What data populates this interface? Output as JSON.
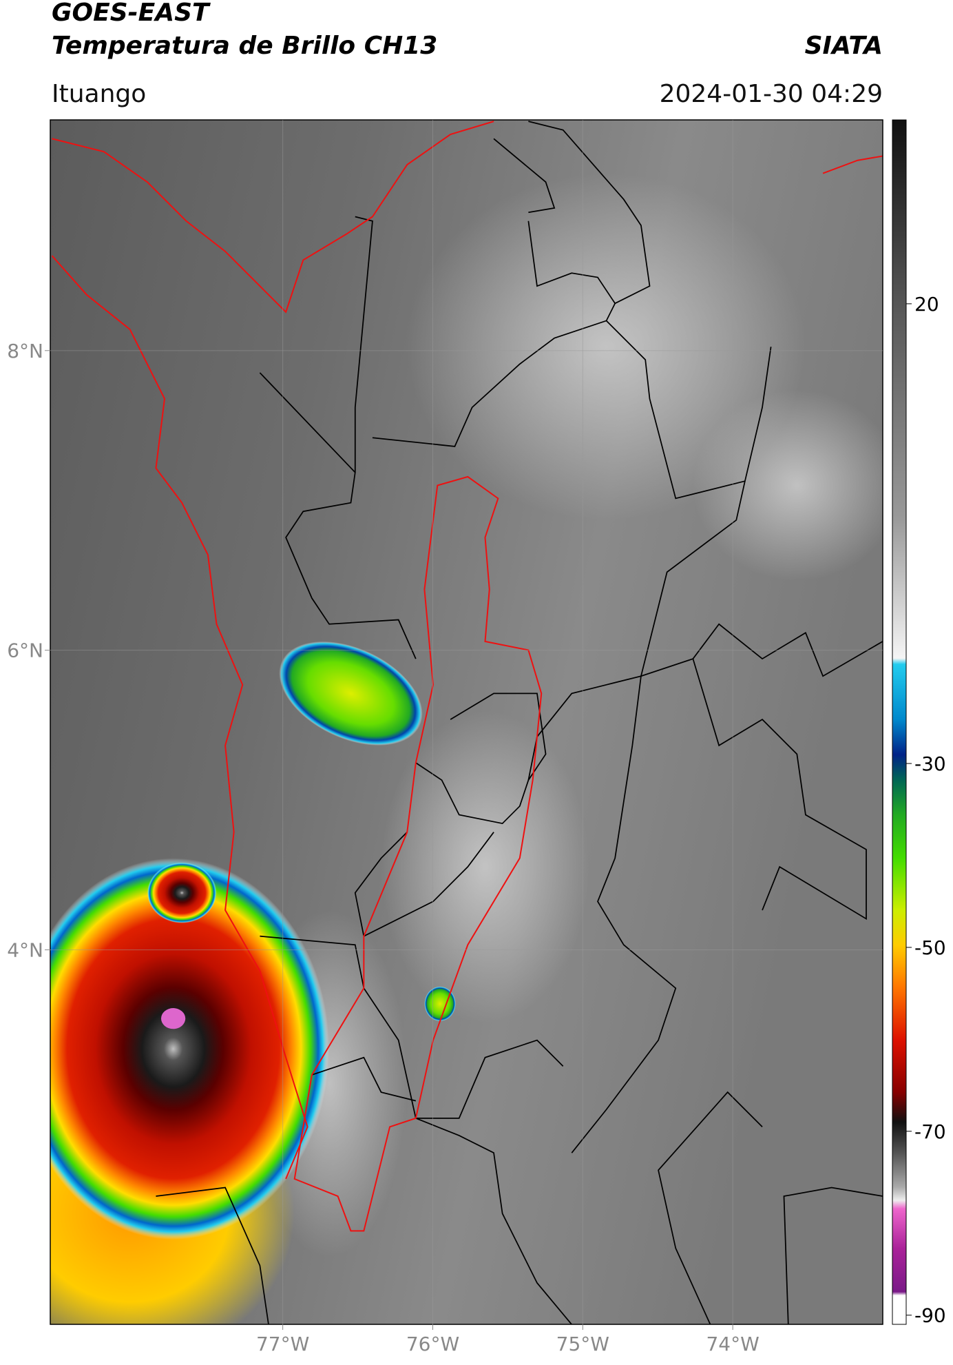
{
  "chart_data": {
    "type": "map",
    "title": "GOES-EAST",
    "subtitle": "Temperatura de Brillo CH13",
    "source": "SIATA",
    "location": "Ituango",
    "datetime": "2024-01-30 04:29",
    "xlim": [
      -78.55,
      -73.0
    ],
    "ylim": [
      1.5,
      9.54
    ],
    "xticks": [
      {
        "value": -77,
        "label": "77°W"
      },
      {
        "value": -76,
        "label": "76°W"
      },
      {
        "value": -75,
        "label": "75°W"
      },
      {
        "value": -74,
        "label": "74°W"
      }
    ],
    "yticks": [
      {
        "value": 8,
        "label": "8°N"
      },
      {
        "value": 6,
        "label": "6°N"
      },
      {
        "value": 4,
        "label": "4°N"
      }
    ],
    "grid": true,
    "colorbar_lim": [
      -91,
      40
    ],
    "colorbar_ticks": [
      20,
      -30,
      -50,
      -70,
      -90
    ]
  }
}
